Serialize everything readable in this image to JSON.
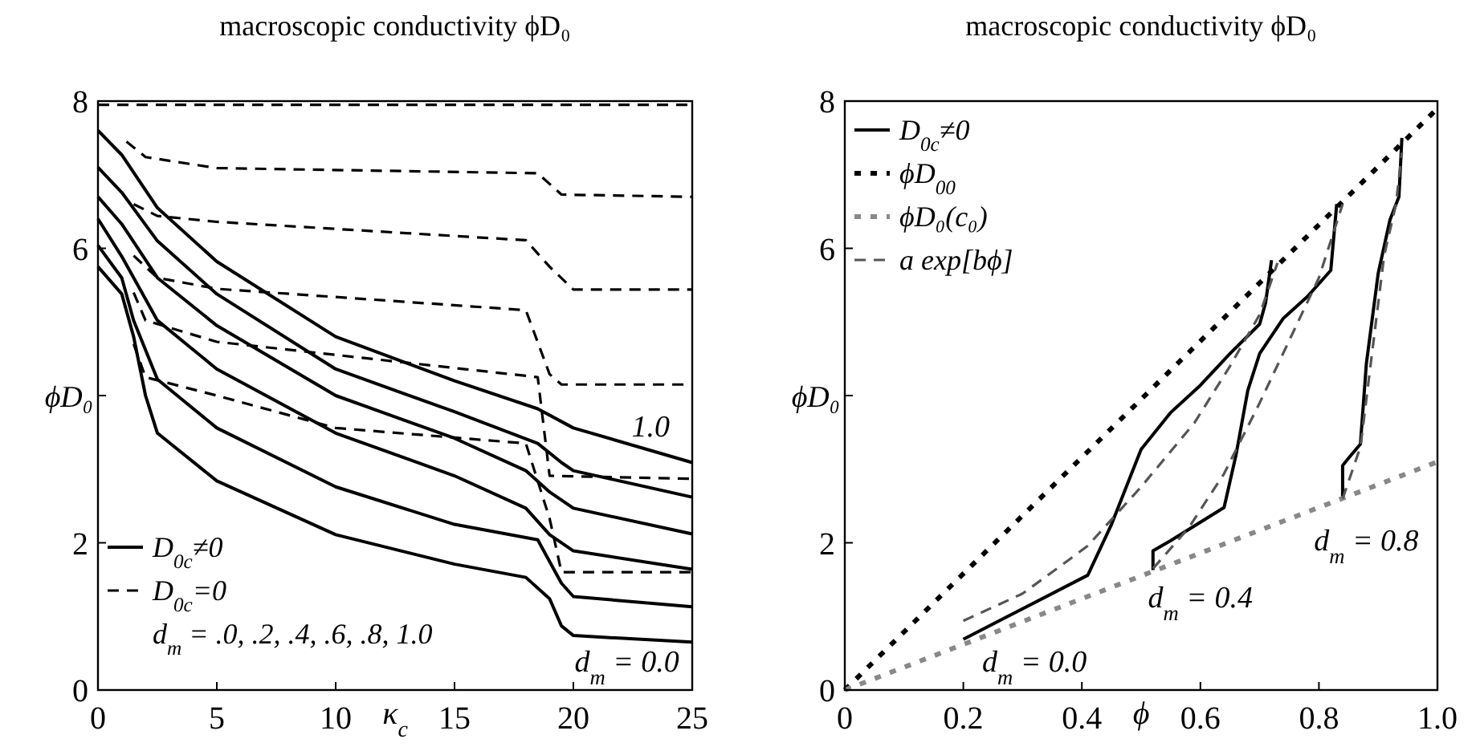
{
  "chart_data": [
    {
      "type": "line",
      "title": "macroscopic conductivity ϕD₀",
      "xlabel": "κ$_{c}$",
      "ylabel": "ϕD₀",
      "xlim": [
        0,
        25
      ],
      "ylim": [
        0,
        8
      ],
      "xticks": [
        0,
        5,
        10,
        15,
        20,
        25
      ],
      "yticks": [
        0,
        2,
        {
          "value": 4,
          "label": null
        },
        6,
        8
      ],
      "grid": false,
      "legend": "bottom left",
      "marker": "none",
      "annotations": [
        "d$_{m}$ = .0, .2, .4, .6, .8, 1.0",
        "1.0",
        "d$_{m}$ = 0.0"
      ],
      "series": [
        {
          "name": "D$_{0c}$≠0",
          "color": "#000000",
          "line_style": "solid",
          "x": [
            0,
            1,
            2.5,
            5,
            10,
            15,
            18.5,
            20,
            25
          ],
          "values": [
            7.6,
            7.27,
            6.55,
            5.82,
            4.8,
            4.2,
            3.82,
            3.56,
            3.09
          ]
        },
        {
          "color": "#000000",
          "line_style": "solid",
          "x": [
            0,
            1,
            2.5,
            5,
            10,
            15,
            18.5,
            19.5,
            20,
            25
          ],
          "values": [
            7.1,
            6.76,
            6.1,
            5.38,
            4.36,
            3.78,
            3.35,
            3.09,
            2.98,
            2.62
          ]
        },
        {
          "color": "#000000",
          "line_style": "solid",
          "x": [
            0,
            1,
            2.5,
            5,
            10,
            15,
            18,
            19,
            20,
            25
          ],
          "values": [
            6.7,
            6.33,
            5.6,
            4.95,
            4.0,
            3.42,
            2.98,
            2.69,
            2.47,
            2.12
          ]
        },
        {
          "color": "#000000",
          "line_style": "solid",
          "x": [
            0,
            1,
            2,
            2.5,
            5,
            10,
            15,
            18,
            19,
            20,
            25
          ],
          "values": [
            6.4,
            5.89,
            5.31,
            5.02,
            4.36,
            3.49,
            2.91,
            2.47,
            2.11,
            1.89,
            1.64
          ]
        },
        {
          "color": "#000000",
          "line_style": "solid",
          "x": [
            0,
            1,
            1.5,
            2.5,
            5,
            10,
            15,
            18.5,
            19.5,
            20,
            25
          ],
          "values": [
            6.04,
            5.6,
            5.02,
            4.22,
            3.56,
            2.76,
            2.25,
            2.04,
            1.45,
            1.27,
            1.13
          ]
        },
        {
          "color": "#000000",
          "line_style": "solid",
          "x": [
            0,
            1,
            1.5,
            2,
            2.5,
            5,
            10,
            15,
            18,
            19,
            19.5,
            20,
            25
          ],
          "values": [
            5.75,
            5.38,
            4.8,
            4.0,
            3.49,
            2.84,
            2.11,
            1.71,
            1.53,
            1.24,
            0.87,
            0.74,
            0.65
          ]
        },
        {
          "name": "D$_{0c}$=0",
          "color": "#000000",
          "line_style": "dashed",
          "x": [
            0,
            25
          ],
          "values": [
            7.95,
            7.95
          ]
        },
        {
          "color": "#000000",
          "line_style": "dashed",
          "x": [
            1.2,
            2,
            5,
            18.5,
            19.5,
            25
          ],
          "values": [
            7.45,
            7.24,
            7.09,
            7.02,
            6.73,
            6.7
          ]
        },
        {
          "color": "#000000",
          "line_style": "dashed",
          "x": [
            1.5,
            2.5,
            5,
            18,
            19,
            20,
            25
          ],
          "values": [
            6.6,
            6.44,
            6.36,
            6.11,
            5.75,
            5.44,
            5.44
          ]
        },
        {
          "color": "#000000",
          "line_style": "dashed",
          "x": [
            1.5,
            2.5,
            5,
            18,
            19,
            19.5,
            25
          ],
          "values": [
            5.9,
            5.6,
            5.45,
            5.16,
            4.29,
            4.15,
            4.15
          ]
        },
        {
          "color": "#000000",
          "line_style": "dashed",
          "x": [
            1.5,
            2,
            5,
            18.5,
            19,
            25
          ],
          "values": [
            5.4,
            5.02,
            4.73,
            4.25,
            2.91,
            2.87
          ]
        },
        {
          "color": "#000000",
          "line_style": "dashed",
          "x": [
            1.5,
            2,
            5,
            10,
            18,
            19,
            19.5,
            25
          ],
          "values": [
            4.7,
            4.25,
            4.0,
            3.56,
            3.35,
            2.33,
            1.6,
            1.6
          ]
        }
      ]
    },
    {
      "type": "line",
      "title": "macroscopic conductivity ϕD₀",
      "xlabel": "ϕ",
      "ylabel": "ϕD₀",
      "xlim": [
        0,
        1
      ],
      "ylim": [
        0,
        8
      ],
      "xticks": [
        0,
        0.2,
        0.4,
        0.6,
        0.8,
        {
          "value": 1,
          "label": "1.0"
        }
      ],
      "yticks": [
        0,
        2,
        {
          "value": 4,
          "label": null
        },
        6,
        8
      ],
      "grid": false,
      "legend": "top left",
      "marker": "none",
      "annotations": [
        "d$_{m}$ = 0.0",
        "d$_{m}$ = 0.4",
        "d$_{m}$ = 0.8"
      ],
      "series": [
        {
          "name": "D$_{0c}$≠0",
          "color": "#000000",
          "line_style": "solid",
          "x": [
            0.2,
            0.41,
            0.45,
            0.5,
            0.55,
            0.6,
            0.65,
            0.7,
            0.71,
            0.72
          ],
          "values": [
            0.69,
            1.56,
            2.25,
            3.27,
            3.77,
            4.14,
            4.57,
            4.97,
            5.26,
            5.84
          ]
        },
        {
          "color": "#000000",
          "line_style": "solid",
          "x": [
            0.52,
            0.52,
            0.55,
            0.64,
            0.66,
            0.68,
            0.7,
            0.74,
            0.78,
            0.82,
            0.83
          ],
          "values": [
            1.63,
            1.89,
            2.03,
            2.48,
            3.19,
            4.07,
            4.57,
            5.05,
            5.34,
            5.7,
            6.6
          ]
        },
        {
          "color": "#000000",
          "line_style": "solid",
          "x": [
            0.84,
            0.84,
            0.85,
            0.87,
            0.88,
            0.9,
            0.92,
            0.935,
            0.94
          ],
          "values": [
            2.61,
            3.05,
            3.15,
            3.34,
            4.43,
            5.66,
            6.39,
            6.7,
            7.5
          ]
        },
        {
          "name": "ϕD$_{00}$",
          "color": "#000000",
          "line_style": "dotted",
          "x": [
            0,
            1
          ],
          "values": [
            0,
            7.9
          ]
        },
        {
          "name": "ϕD₀(c₀)",
          "color": "#888888",
          "line_style": "dotted",
          "x": [
            0,
            1
          ],
          "values": [
            0,
            3.1
          ]
        },
        {
          "name": "a exp[bϕ]",
          "color": "#555555",
          "line_style": "dashed",
          "x": [
            0.2,
            0.3,
            0.38,
            0.41,
            0.5,
            0.59,
            0.65,
            0.7,
            0.73
          ],
          "values": [
            0.94,
            1.31,
            1.78,
            1.96,
            2.76,
            3.63,
            4.4,
            5.1,
            5.8
          ]
        },
        {
          "color": "#555555",
          "line_style": "dashed",
          "x": [
            0.52,
            0.58,
            0.64,
            0.7,
            0.75,
            0.8,
            0.84
          ],
          "values": [
            1.65,
            2.2,
            2.94,
            3.9,
            4.75,
            5.6,
            6.6
          ]
        },
        {
          "color": "#555555",
          "line_style": "dashed",
          "x": [
            0.84,
            0.87,
            0.89,
            0.91,
            0.93,
            0.94
          ],
          "values": [
            2.6,
            3.3,
            4.6,
            5.9,
            6.6,
            7.3
          ]
        }
      ]
    }
  ]
}
